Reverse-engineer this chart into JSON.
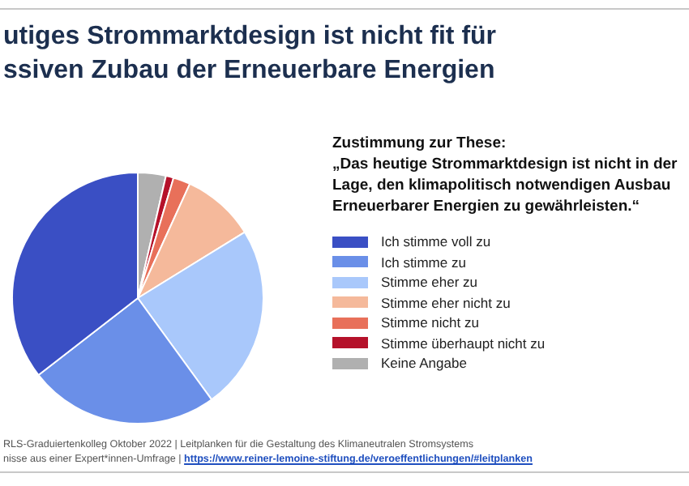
{
  "chart_data": {
    "type": "pie",
    "title": "utiges Strommarktdesign ist nicht fit für\nssiven Zubau der Erneuerbare Energien",
    "subtitle": "Zustimmung zur These:",
    "legend_title": "„Das heutige Strommarktdesign ist nicht in der Lage, den klimapolitisch notwendigen Ausbau Erneuerbarer Energien zu gewährleisten.“",
    "categories": [
      "Ich stimme voll zu",
      "Ich stimme zu",
      "Stimme eher zu",
      "Stimme eher nicht zu",
      "Stimme nicht zu",
      "Stimme überhaupt nicht zu",
      "Keine Angabe"
    ],
    "values": [
      35.5,
      24.5,
      23.8,
      9.4,
      2.2,
      1.0,
      3.6
    ],
    "colors": [
      "#3a4fc4",
      "#6a8fe8",
      "#a9c8fb",
      "#f5b99b",
      "#e8705a",
      "#b5112a",
      "#b0b0b0"
    ],
    "legend": "right",
    "annotations": [
      "RLS-Graduiertenkolleg Oktober 2022 | Leitplanken für die Gestaltung des Klimaneutralen Stromsystems",
      "nisse aus einer Expert*innen-Umfrage | https://www.reiner-lemoine-stiftung.de/veroeffentlichungen/#leitplanken"
    ]
  }
}
